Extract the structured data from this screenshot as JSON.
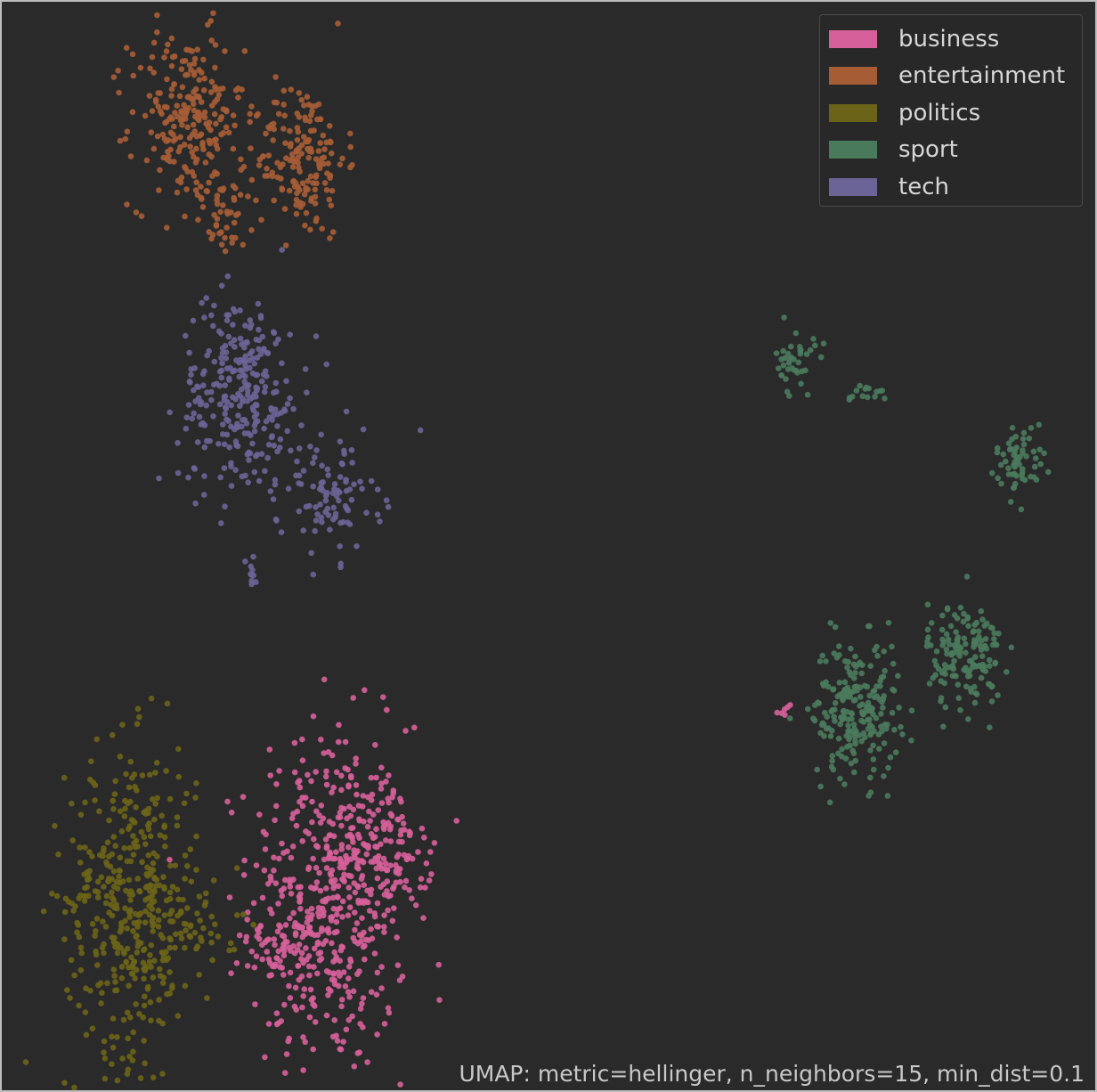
{
  "chart_data": {
    "type": "scatter",
    "title": "",
    "xlabel": "",
    "ylabel": "",
    "grid": false,
    "legend_placement": "top-right",
    "xlim": [
      0,
      100
    ],
    "ylim": [
      0,
      100
    ],
    "caption": "UMAP: metric=hellinger, n_neighbors=15, min_dist=0.1",
    "series": [
      {
        "name": "business",
        "color": "#d6619a",
        "clusters": [
          {
            "cx": 30.0,
            "cy": 17.5,
            "sx": 3.6,
            "sy": 8.0,
            "n": 480
          },
          {
            "cx": 35.0,
            "cy": 21.5,
            "sx": 2.2,
            "sy": 2.5,
            "n": 110
          },
          {
            "cx": 26.0,
            "cy": 13.0,
            "sx": 1.5,
            "sy": 1.5,
            "n": 40
          },
          {
            "cx": 71.6,
            "cy": 35.0,
            "sx": 0.3,
            "sy": 0.3,
            "n": 6
          }
        ]
      },
      {
        "name": "entertainment",
        "color": "#a65d36",
        "clusters": [
          {
            "cx": 17.0,
            "cy": 89.0,
            "sx": 2.6,
            "sy": 4.0,
            "n": 230
          },
          {
            "cx": 27.5,
            "cy": 85.5,
            "sx": 2.0,
            "sy": 3.6,
            "n": 170
          },
          {
            "cx": 20.5,
            "cy": 80.5,
            "sx": 1.5,
            "sy": 1.8,
            "n": 40
          }
        ]
      },
      {
        "name": "politics",
        "color": "#6b6418",
        "clusters": [
          {
            "cx": 12.0,
            "cy": 17.5,
            "sx": 3.0,
            "sy": 7.0,
            "n": 420
          },
          {
            "cx": 18.5,
            "cy": 15.5,
            "sx": 1.6,
            "sy": 2.2,
            "n": 40
          }
        ]
      },
      {
        "name": "sport",
        "color": "#4a7a5c",
        "clusters": [
          {
            "cx": 78.0,
            "cy": 35.0,
            "sx": 2.0,
            "sy": 3.2,
            "n": 220
          },
          {
            "cx": 88.0,
            "cy": 40.0,
            "sx": 1.7,
            "sy": 2.5,
            "n": 150
          },
          {
            "cx": 72.5,
            "cy": 66.8,
            "sx": 0.9,
            "sy": 1.5,
            "n": 40
          },
          {
            "cx": 79.0,
            "cy": 64.0,
            "sx": 1.0,
            "sy": 0.4,
            "n": 15
          },
          {
            "cx": 93.0,
            "cy": 58.0,
            "sx": 1.1,
            "sy": 1.6,
            "n": 60
          }
        ]
      },
      {
        "name": "tech",
        "color": "#6b6496",
        "clusters": [
          {
            "cx": 22.0,
            "cy": 64.0,
            "sx": 2.8,
            "sy": 4.5,
            "n": 280
          },
          {
            "cx": 30.0,
            "cy": 54.5,
            "sx": 2.3,
            "sy": 2.8,
            "n": 90
          },
          {
            "cx": 23.0,
            "cy": 47.0,
            "sx": 0.3,
            "sy": 1.0,
            "n": 10
          }
        ]
      }
    ]
  }
}
